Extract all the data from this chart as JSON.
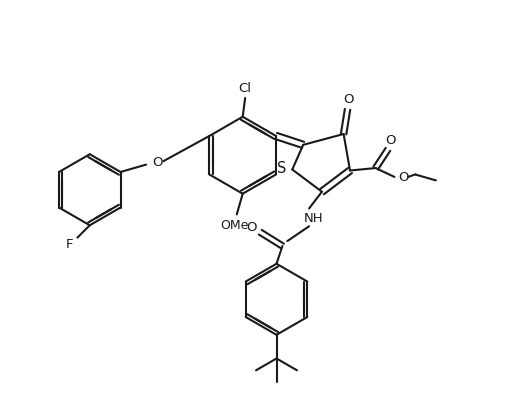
{
  "background": "#ffffff",
  "line_color": "#1a1a1a",
  "line_width": 1.5,
  "font_size": 9.5,
  "figsize": [
    5.14,
    4.17
  ],
  "dpi": 100,
  "xlim": [
    0,
    10.28
  ],
  "ylim": [
    0,
    8.34
  ]
}
